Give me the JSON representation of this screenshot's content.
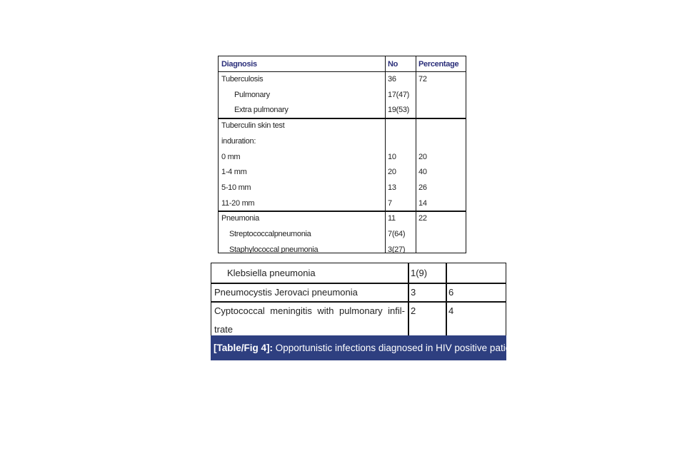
{
  "table1": {
    "header": [
      "Diagnosis",
      "No",
      "Percentage"
    ],
    "groups": [
      [
        [
          "Tuberculosis",
          36,
          72
        ],
        [
          "Pulmonary",
          "17(47)",
          null
        ],
        [
          "Extra pulmonary",
          "19(53)",
          null
        ]
      ],
      [
        [
          "Tuberculin skin test",
          null,
          null
        ],
        [
          "induration:",
          null,
          null
        ],
        [
          "0 mm",
          10,
          20
        ],
        [
          "1-4 mm",
          20,
          40
        ],
        [
          "5-10 mm",
          13,
          26
        ],
        [
          "11-20 mm",
          7,
          14
        ]
      ],
      [
        [
          "Pneumonia",
          11,
          22
        ],
        [
          "Streptococcalpneumonia",
          "7(64)",
          null
        ],
        [
          "Staphylococcal pneumonia",
          "3(27)",
          null
        ]
      ]
    ]
  },
  "table2": {
    "rows": [
      [
        [
          "Klebsiella pneumonia"
        ],
        "1(9)",
        null
      ],
      [
        [
          "Pneumocystis Jerovaci pneumonia"
        ],
        3,
        6
      ],
      [
        [
          "Cyptococcal meningitis with pulmonary infil-",
          "trate"
        ],
        2,
        4
      ]
    ]
  },
  "caption": {
    "label": "[Table/Fig 4]:",
    "text": "Opportunistic infections diagnosed in HIV positive patients."
  }
}
